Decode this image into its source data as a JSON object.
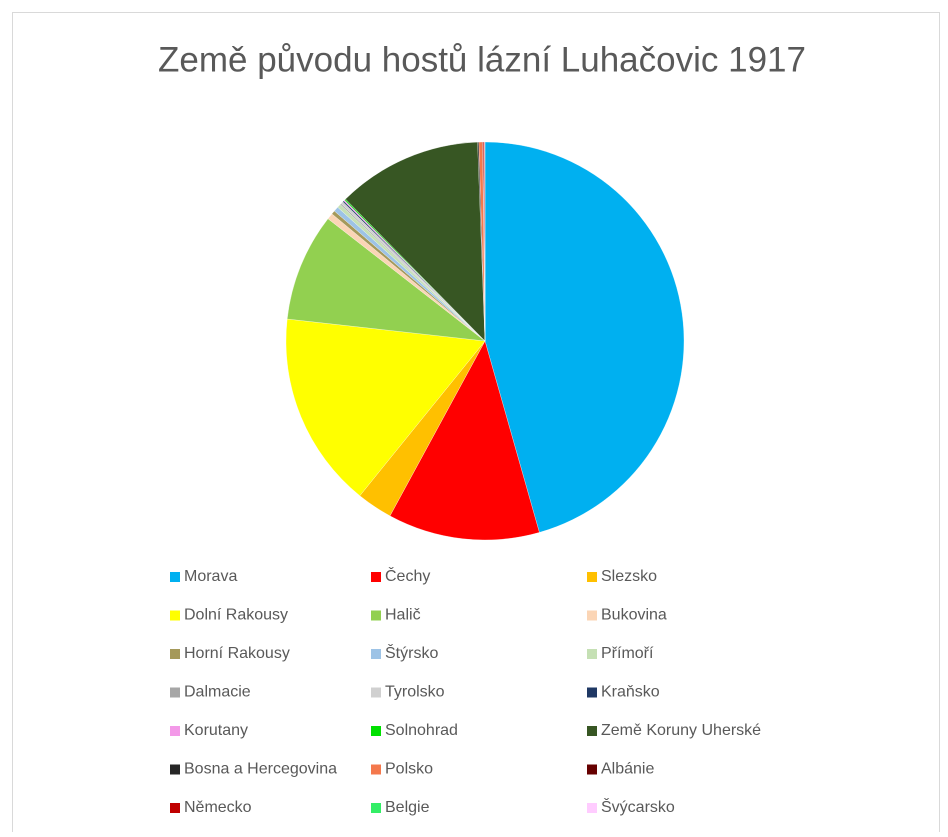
{
  "chart_data": {
    "type": "pie",
    "title": "Země původu hostů lázní Luhačovic 1917",
    "categories": [
      "Morava",
      "Čechy",
      "Slezsko",
      "Dolní Rakousy",
      "Halič",
      "Bukovina",
      "Horní Rakousy",
      "Štýrsko",
      "Přímoří",
      "Dalmacie",
      "Tyrolsko",
      "Kraňsko",
      "Korutany",
      "Solnohrad",
      "Země Koruny Uherské",
      "Bosna a Hercegovina",
      "Polsko",
      "Albánie",
      "Německo",
      "Belgie",
      "Švýcarsko"
    ],
    "values": [
      45.5,
      12.3,
      2.9,
      15.9,
      8.75,
      0.5,
      0.3,
      0.4,
      0.3,
      0.1,
      0.2,
      0.1,
      0.1,
      0.1,
      11.75,
      0.1,
      0.3,
      0.05,
      0.1,
      0.02,
      0.02
    ],
    "colors": [
      "#00b0f0",
      "#ff0000",
      "#ffc000",
      "#ffff00",
      "#92d050",
      "#fbd5b5",
      "#a5995a",
      "#9dc3e6",
      "#c5e0b4",
      "#a6a6a6",
      "#d0d0d0",
      "#1f3864",
      "#f399e8",
      "#00e000",
      "#375623",
      "#262626",
      "#f4784c",
      "#660000",
      "#c00000",
      "#33ee66",
      "#ffccff"
    ],
    "legend": "bottom"
  }
}
